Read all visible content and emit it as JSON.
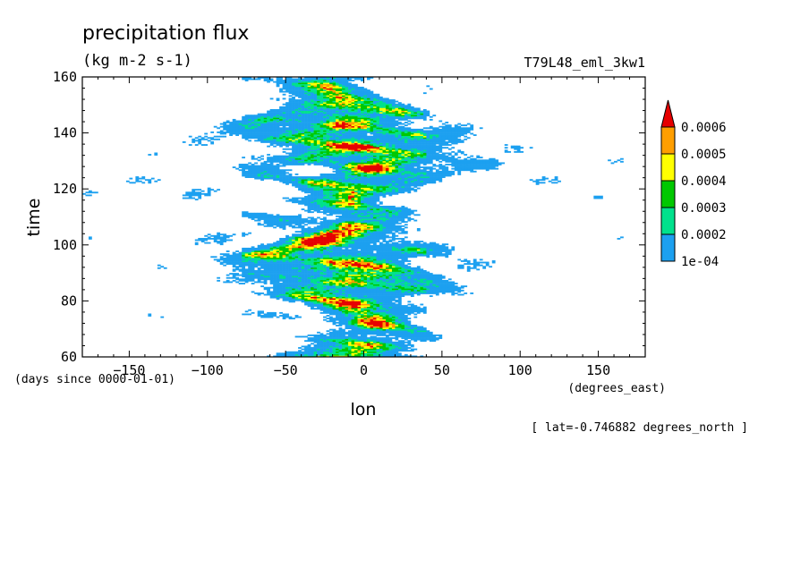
{
  "chart_data": {
    "type": "heatmap",
    "title": "precipitation flux",
    "units": "(kg m-2 s-1)",
    "run_label": "T79L48_eml_3kw1",
    "xlabel": "lon",
    "ylabel": "time",
    "x_units": "(degrees_east)",
    "y_units": "(days since 0000-01-01)",
    "footnote": "[ lat=-0.746882 degrees_north ]",
    "xlim": [
      -180,
      180
    ],
    "ylim": [
      60,
      160
    ],
    "xticks": [
      -150,
      -100,
      -50,
      0,
      50,
      100,
      150
    ],
    "yticks": [
      60,
      80,
      100,
      120,
      140,
      160
    ],
    "legend_position": "right",
    "colorbar": {
      "levels": [
        "1e-04",
        "0.0002",
        "0.0003",
        "0.0004",
        "0.0005",
        "0.0006"
      ],
      "colors": [
        "#1ca0f0",
        "#00e18c",
        "#00c800",
        "#ffff00",
        "#ff9e00",
        "#e60000"
      ],
      "extend_max_color": "#e60000"
    },
    "active_band": {
      "lon_min": -100,
      "lon_max": 95
    },
    "intense_core": {
      "lon_min": -80,
      "lon_max": 40
    },
    "isolated_patch": {
      "lon": 150,
      "time": 117
    }
  }
}
